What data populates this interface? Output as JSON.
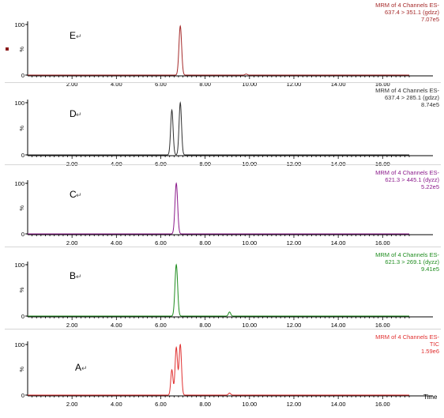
{
  "x_axis_name": "Time",
  "panel_marker": "↵",
  "chart_data": [
    {
      "type": "line",
      "panel_label": "E",
      "header": [
        "MRM of 4 Channels ES-",
        "637.4 > 351.1 (gdzz)",
        "7.07e5"
      ],
      "color": "#a52a2a",
      "y_ticks": [
        "100",
        "%",
        "0"
      ],
      "ylim": [
        0,
        100
      ],
      "xlim": [
        0.0,
        17.2
      ],
      "x_ticks": [
        "2.00",
        "4.00",
        "6.00",
        "8.00",
        "10.00",
        "12.00",
        "14.00",
        "16.00"
      ],
      "peaks": [
        {
          "x": 6.88,
          "height": 97,
          "width": 0.06
        },
        {
          "x": 9.85,
          "height": 2,
          "width": 0.05
        }
      ]
    },
    {
      "type": "line",
      "panel_label": "D",
      "header": [
        "MRM of 4 Channels ES-",
        "637.4 > 285.1 (gdzz)",
        "8.74e5"
      ],
      "color": "#303030",
      "y_ticks": [
        "100",
        "%",
        "0"
      ],
      "ylim": [
        0,
        100
      ],
      "xlim": [
        0.0,
        17.2
      ],
      "x_ticks": [
        "2.00",
        "4.00",
        "6.00",
        "8.00",
        "10.00",
        "12.00",
        "14.00",
        "16.00"
      ],
      "peaks": [
        {
          "x": 6.5,
          "height": 86,
          "width": 0.055
        },
        {
          "x": 6.88,
          "height": 100,
          "width": 0.055
        }
      ]
    },
    {
      "type": "line",
      "panel_label": "C",
      "header": [
        "MRM of 4 Channels ES-",
        "621.3 > 445.1 (dyzz)",
        "5.22e5"
      ],
      "color": "#8b1a8b",
      "y_ticks": [
        "100",
        "%",
        "0"
      ],
      "ylim": [
        0,
        100
      ],
      "xlim": [
        0.0,
        17.2
      ],
      "x_ticks": [
        "2.00",
        "4.00",
        "6.00",
        "8.00",
        "10.00",
        "12.00",
        "14.00",
        "16.00"
      ],
      "peaks": [
        {
          "x": 6.7,
          "height": 100,
          "width": 0.06
        }
      ]
    },
    {
      "type": "line",
      "panel_label": "B",
      "header": [
        "MRM of 4 Channels ES-",
        "621.3 > 269.1 (dyzz)",
        "9.41e5"
      ],
      "color": "#1e8c1e",
      "y_ticks": [
        "100",
        "%",
        "0"
      ],
      "ylim": [
        0,
        100
      ],
      "xlim": [
        0.0,
        17.2
      ],
      "x_ticks": [
        "2.00",
        "4.00",
        "6.00",
        "8.00",
        "10.00",
        "12.00",
        "14.00",
        "16.00"
      ],
      "peaks": [
        {
          "x": 6.7,
          "height": 100,
          "width": 0.06
        },
        {
          "x": 9.1,
          "height": 8,
          "width": 0.05
        }
      ]
    },
    {
      "type": "line",
      "panel_label": "A",
      "header": [
        "MRM of 4 Channels ES-",
        "TIC",
        "1.59e6"
      ],
      "color": "#e03030",
      "y_ticks": [
        "100",
        "%",
        "0"
      ],
      "ylim": [
        0,
        100
      ],
      "xlim": [
        0.0,
        17.2
      ],
      "x_ticks": [
        "2.00",
        "4.00",
        "6.00",
        "8.00",
        "10.00",
        "12.00",
        "14.00",
        "16.00"
      ],
      "peaks": [
        {
          "x": 6.5,
          "height": 50,
          "width": 0.05
        },
        {
          "x": 6.7,
          "height": 94,
          "width": 0.055
        },
        {
          "x": 6.88,
          "height": 100,
          "width": 0.055
        },
        {
          "x": 9.1,
          "height": 4,
          "width": 0.05
        }
      ]
    }
  ]
}
